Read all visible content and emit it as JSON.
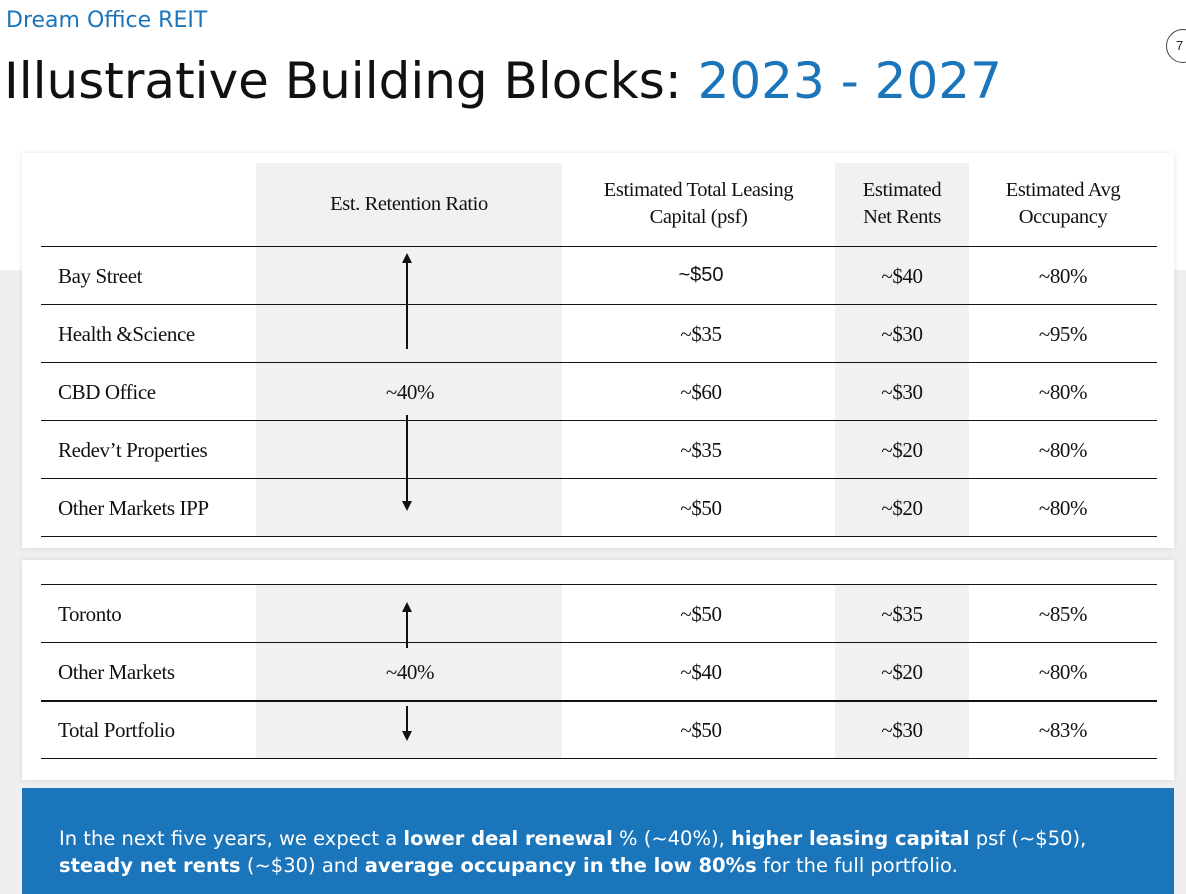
{
  "brand": "Dream Office REIT",
  "page_number": "7",
  "title": {
    "main": "Illustrative Building Blocks: ",
    "accent": "2023 - 2027"
  },
  "table1": {
    "headers": {
      "retention": "Est. Retention Ratio",
      "leasing_capital_1": "Estimated Total Leasing",
      "leasing_capital_2": "Capital (psf)",
      "net_rents_1": "Estimated",
      "net_rents_2": "Net Rents",
      "occupancy_1": "Estimated Avg",
      "occupancy_2": "Occupancy"
    },
    "retention_value": "~40%",
    "rows": [
      {
        "name": "Bay Street",
        "capital": "~$50",
        "rents": "~$40",
        "occupancy": "~80%"
      },
      {
        "name": "Health &Science",
        "capital": "~$35",
        "rents": "~$30",
        "occupancy": "~95%"
      },
      {
        "name": "CBD Office",
        "capital": "~$60",
        "rents": "~$30",
        "occupancy": "~80%"
      },
      {
        "name": "Redev’t Properties",
        "capital": "~$35",
        "rents": "~$20",
        "occupancy": "~80%"
      },
      {
        "name": "Other Markets IPP",
        "capital": "~$50",
        "rents": "~$20",
        "occupancy": "~80%"
      }
    ]
  },
  "table2": {
    "retention_value": "~40%",
    "rows": [
      {
        "name": "Toronto",
        "capital": "~$50",
        "rents": "~$35",
        "occupancy": "~85%"
      },
      {
        "name": "Other Markets",
        "capital": "~$40",
        "rents": "~$20",
        "occupancy": "~80%"
      },
      {
        "name": "Total Portfolio",
        "capital": "~$50",
        "rents": "~$30",
        "occupancy": "~83%"
      }
    ]
  },
  "callout": {
    "t1": "In the next five years, we expect a ",
    "b1": "lower deal renewal",
    "t2": " % (~40%), ",
    "b2": "higher leasing capital",
    "t3": " psf (~$50), ",
    "b3": "steady net rents",
    "t4": " (~$30) and ",
    "b4": "average occupancy in the low 80%s",
    "t5": " for the full portfolio."
  }
}
